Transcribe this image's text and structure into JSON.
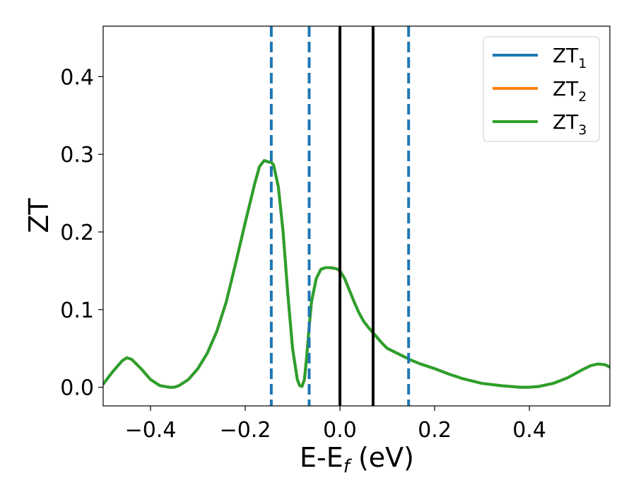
{
  "chart_data": {
    "type": "line",
    "xlabel": {
      "base": "E-E",
      "sub": "f",
      "tail": " (eV)"
    },
    "ylabel": "ZT",
    "xlim": [
      -0.5,
      0.57
    ],
    "ylim": [
      -0.024,
      0.465
    ],
    "xticks": [
      {
        "value": -0.4,
        "label": "−0.4"
      },
      {
        "value": -0.2,
        "label": "−0.2"
      },
      {
        "value": 0.0,
        "label": "0.0"
      },
      {
        "value": 0.2,
        "label": "0.2"
      },
      {
        "value": 0.4,
        "label": "0.4"
      }
    ],
    "yticks": [
      {
        "value": 0.0,
        "label": "0.0"
      },
      {
        "value": 0.1,
        "label": "0.1"
      },
      {
        "value": 0.2,
        "label": "0.2"
      },
      {
        "value": 0.3,
        "label": "0.3"
      },
      {
        "value": 0.4,
        "label": "0.4"
      }
    ],
    "grid": false,
    "legend": {
      "position": "top-right"
    },
    "x": [
      -0.5,
      -0.48,
      -0.46,
      -0.45,
      -0.44,
      -0.42,
      -0.4,
      -0.38,
      -0.36,
      -0.35,
      -0.34,
      -0.32,
      -0.3,
      -0.28,
      -0.26,
      -0.24,
      -0.22,
      -0.2,
      -0.18,
      -0.17,
      -0.16,
      -0.15,
      -0.145,
      -0.14,
      -0.13,
      -0.12,
      -0.11,
      -0.1,
      -0.09,
      -0.085,
      -0.08,
      -0.075,
      -0.07,
      -0.065,
      -0.06,
      -0.05,
      -0.04,
      -0.03,
      -0.02,
      -0.01,
      -0.005,
      0.0,
      0.01,
      0.02,
      0.03,
      0.04,
      0.05,
      0.06,
      0.07,
      0.08,
      0.09,
      0.1,
      0.12,
      0.14,
      0.15,
      0.17,
      0.2,
      0.23,
      0.26,
      0.3,
      0.34,
      0.38,
      0.4,
      0.42,
      0.45,
      0.48,
      0.51,
      0.53,
      0.545,
      0.56,
      0.57
    ],
    "series": [
      {
        "name": "ZT",
        "sub": "1",
        "color": "#1f77b4",
        "values": [
          0.004,
          0.02,
          0.034,
          0.038,
          0.036,
          0.024,
          0.01,
          0.002,
          0.0,
          0.0,
          0.002,
          0.01,
          0.024,
          0.044,
          0.072,
          0.11,
          0.16,
          0.212,
          0.262,
          0.284,
          0.292,
          0.29,
          0.29,
          0.286,
          0.258,
          0.2,
          0.12,
          0.05,
          0.01,
          0.002,
          0.001,
          0.01,
          0.04,
          0.078,
          0.11,
          0.14,
          0.152,
          0.154,
          0.154,
          0.153,
          0.152,
          0.15,
          0.14,
          0.125,
          0.11,
          0.096,
          0.085,
          0.077,
          0.07,
          0.063,
          0.056,
          0.05,
          0.044,
          0.038,
          0.035,
          0.03,
          0.024,
          0.017,
          0.011,
          0.005,
          0.002,
          0.0,
          0.0,
          0.001,
          0.005,
          0.012,
          0.022,
          0.028,
          0.03,
          0.029,
          0.026
        ]
      },
      {
        "name": "ZT",
        "sub": "2",
        "color": "#ff7f0e",
        "values": [
          0.004,
          0.02,
          0.034,
          0.038,
          0.036,
          0.024,
          0.01,
          0.002,
          0.0,
          0.0,
          0.002,
          0.01,
          0.024,
          0.044,
          0.072,
          0.11,
          0.16,
          0.212,
          0.262,
          0.284,
          0.292,
          0.29,
          0.29,
          0.286,
          0.258,
          0.2,
          0.12,
          0.05,
          0.01,
          0.002,
          0.001,
          0.01,
          0.04,
          0.078,
          0.11,
          0.14,
          0.152,
          0.154,
          0.154,
          0.153,
          0.152,
          0.15,
          0.14,
          0.125,
          0.11,
          0.096,
          0.085,
          0.077,
          0.07,
          0.063,
          0.056,
          0.05,
          0.044,
          0.038,
          0.035,
          0.03,
          0.024,
          0.017,
          0.011,
          0.005,
          0.002,
          0.0,
          0.0,
          0.001,
          0.005,
          0.012,
          0.022,
          0.028,
          0.03,
          0.029,
          0.026
        ]
      },
      {
        "name": "ZT",
        "sub": "3",
        "color": "#2ca02c",
        "values": [
          0.004,
          0.02,
          0.034,
          0.038,
          0.036,
          0.024,
          0.01,
          0.002,
          0.0,
          0.0,
          0.002,
          0.01,
          0.024,
          0.044,
          0.072,
          0.11,
          0.16,
          0.212,
          0.262,
          0.284,
          0.292,
          0.29,
          0.29,
          0.286,
          0.258,
          0.2,
          0.12,
          0.05,
          0.01,
          0.002,
          0.001,
          0.01,
          0.04,
          0.078,
          0.11,
          0.14,
          0.152,
          0.154,
          0.154,
          0.153,
          0.152,
          0.15,
          0.14,
          0.125,
          0.11,
          0.096,
          0.085,
          0.077,
          0.07,
          0.063,
          0.056,
          0.05,
          0.044,
          0.038,
          0.035,
          0.03,
          0.024,
          0.017,
          0.011,
          0.005,
          0.002,
          0.0,
          0.0,
          0.001,
          0.005,
          0.012,
          0.022,
          0.028,
          0.03,
          0.029,
          0.026
        ]
      }
    ],
    "vlines": [
      {
        "x": -0.145,
        "style": "dashed",
        "color": "#1f77b4"
      },
      {
        "x": -0.065,
        "style": "dashed",
        "color": "#1f77b4"
      },
      {
        "x": 0.0,
        "style": "solid",
        "color": "#000000"
      },
      {
        "x": 0.07,
        "style": "solid",
        "color": "#000000"
      },
      {
        "x": 0.145,
        "style": "dashed",
        "color": "#1f77b4"
      }
    ]
  }
}
